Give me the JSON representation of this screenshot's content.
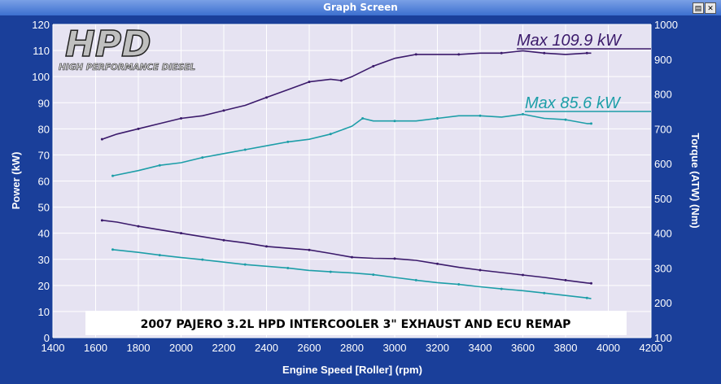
{
  "window": {
    "title": "Graph Screen"
  },
  "colors": {
    "frame": "#1a3f9a",
    "plot_bg": "#e6e3f2",
    "grid": "#ffffff",
    "series_a": "#3b1a6b",
    "series_b": "#1d9ea8"
  },
  "logo": {
    "big": "HPD",
    "small": "HIGH PERFORMANCE DIESEL"
  },
  "chart_data": {
    "type": "line",
    "title": "2007 PAJERO 3.2L HPD INTERCOOLER 3\" EXHAUST AND ECU REMAP",
    "xlabel": "Engine Speed [Roller] (rpm)",
    "ylabel": "Power (kW)",
    "y2label": "Torque (ATW) (Nm)",
    "xlim": [
      1400,
      4200
    ],
    "ylim": [
      0,
      120
    ],
    "y2lim": [
      100,
      1000
    ],
    "x_ticks": [
      1400,
      1600,
      1800,
      2000,
      2200,
      2400,
      2600,
      2800,
      3000,
      3200,
      3400,
      3600,
      3800,
      4000,
      4200
    ],
    "y_ticks": [
      0,
      10,
      20,
      30,
      40,
      50,
      60,
      70,
      80,
      90,
      100,
      110,
      120
    ],
    "y2_ticks": [
      100,
      200,
      300,
      400,
      500,
      600,
      700,
      800,
      900,
      1000
    ],
    "grid": true,
    "annotations": [
      {
        "text": "Max 109.9 kW",
        "series": "power_a"
      },
      {
        "text": "Max 85.6 kW",
        "series": "power_b"
      }
    ],
    "series": [
      {
        "id": "power_a",
        "axis": "left",
        "color": "#3b1a6b",
        "x": [
          1630,
          1700,
          1800,
          1900,
          2000,
          2100,
          2200,
          2300,
          2400,
          2500,
          2600,
          2700,
          2750,
          2800,
          2900,
          3000,
          3100,
          3200,
          3300,
          3400,
          3500,
          3600,
          3700,
          3800,
          3900,
          3920
        ],
        "y": [
          76,
          78,
          80,
          82,
          84,
          85,
          87,
          89,
          92,
          95,
          98,
          99,
          98.5,
          100,
          104,
          107,
          108.5,
          108.5,
          108.5,
          109,
          109,
          109.9,
          109,
          108.5,
          109,
          109
        ]
      },
      {
        "id": "power_b",
        "axis": "left",
        "color": "#1d9ea8",
        "x": [
          1680,
          1800,
          1900,
          2000,
          2100,
          2200,
          2300,
          2400,
          2500,
          2600,
          2700,
          2800,
          2850,
          2900,
          3000,
          3100,
          3200,
          3300,
          3400,
          3500,
          3600,
          3700,
          3800,
          3900,
          3920
        ],
        "y": [
          62,
          64,
          66,
          67,
          69,
          70.5,
          72,
          73.5,
          75,
          76,
          78,
          81,
          84,
          83,
          83,
          83,
          84,
          85,
          85,
          84.5,
          85.6,
          84,
          83.5,
          82,
          82
        ]
      },
      {
        "id": "torque_a",
        "axis": "right",
        "color": "#3b1a6b",
        "x": [
          1630,
          1700,
          1800,
          1900,
          2000,
          2100,
          2200,
          2300,
          2400,
          2500,
          2600,
          2700,
          2800,
          2900,
          3000,
          3100,
          3200,
          3300,
          3400,
          3500,
          3600,
          3700,
          3800,
          3900,
          3920
        ],
        "y": [
          437,
          432,
          420,
          410,
          400,
          390,
          380,
          372,
          362,
          357,
          352,
          342,
          331,
          328,
          327,
          322,
          312,
          302,
          294,
          287,
          280,
          273,
          265,
          257,
          256
        ]
      },
      {
        "id": "torque_b",
        "axis": "right",
        "color": "#1d9ea8",
        "x": [
          1680,
          1800,
          1900,
          2000,
          2100,
          2200,
          2300,
          2400,
          2500,
          2600,
          2700,
          2800,
          2900,
          3000,
          3100,
          3200,
          3300,
          3400,
          3500,
          3600,
          3700,
          3800,
          3900,
          3920
        ],
        "y": [
          353,
          345,
          337,
          330,
          324,
          317,
          310,
          305,
          300,
          293,
          289,
          286,
          281,
          273,
          265,
          258,
          253,
          246,
          240,
          235,
          228,
          221,
          214,
          212
        ]
      }
    ]
  }
}
